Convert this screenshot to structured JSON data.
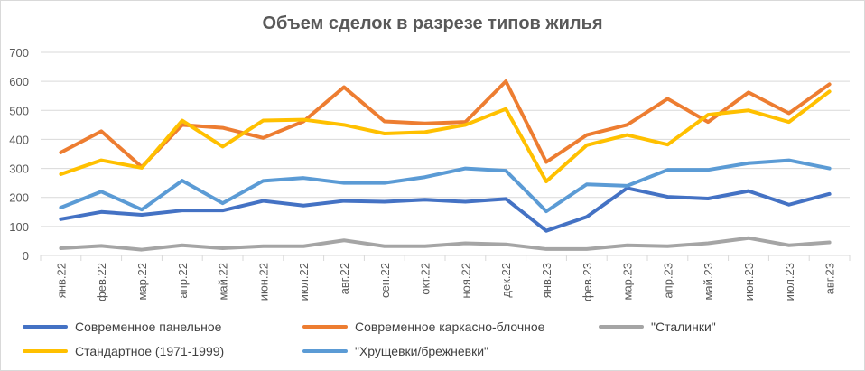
{
  "chart_data": {
    "type": "line",
    "title": "Объем сделок в разрезе типов жилья",
    "xlabel": "",
    "ylabel": "",
    "ylim": [
      0,
      700
    ],
    "yticks": [
      0,
      100,
      200,
      300,
      400,
      500,
      600,
      700
    ],
    "grid": true,
    "legend_position": "bottom",
    "categories": [
      "янв.22",
      "фев.22",
      "мар.22",
      "апр.22",
      "май.22",
      "июн.22",
      "июл.22",
      "авг.22",
      "сен.22",
      "окт.22",
      "ноя.22",
      "дек.22",
      "янв.23",
      "фев.23",
      "мар.23",
      "апр.23",
      "май.23",
      "июн.23",
      "июл.23",
      "авг.23"
    ],
    "series": [
      {
        "name": "Современное панельное",
        "color": "#4472c4",
        "values": [
          125,
          150,
          140,
          155,
          155,
          188,
          172,
          188,
          185,
          192,
          185,
          195,
          85,
          133,
          232,
          202,
          196,
          222,
          175,
          212
        ]
      },
      {
        "name": "Современное каркасно-блочное",
        "color": "#ed7d31",
        "values": [
          355,
          428,
          305,
          450,
          440,
          405,
          462,
          580,
          462,
          455,
          460,
          600,
          322,
          415,
          450,
          540,
          460,
          562,
          490,
          590
        ]
      },
      {
        "name": "\"Сталинки\"",
        "color": "#a5a5a5",
        "values": [
          25,
          33,
          20,
          35,
          25,
          32,
          32,
          52,
          32,
          32,
          42,
          38,
          22,
          22,
          35,
          32,
          42,
          60,
          35,
          45
        ]
      },
      {
        "name": "Стандартное (1971-1999)",
        "color": "#ffc000",
        "values": [
          280,
          328,
          302,
          465,
          375,
          465,
          468,
          450,
          420,
          425,
          450,
          505,
          255,
          380,
          415,
          382,
          485,
          500,
          460,
          565
        ]
      },
      {
        "name": "\"Хрущевки/брежневки\"",
        "color": "#5b9bd5",
        "values": [
          165,
          220,
          158,
          258,
          180,
          257,
          267,
          250,
          250,
          270,
          300,
          292,
          152,
          245,
          240,
          295,
          295,
          318,
          328,
          300
        ]
      }
    ]
  }
}
